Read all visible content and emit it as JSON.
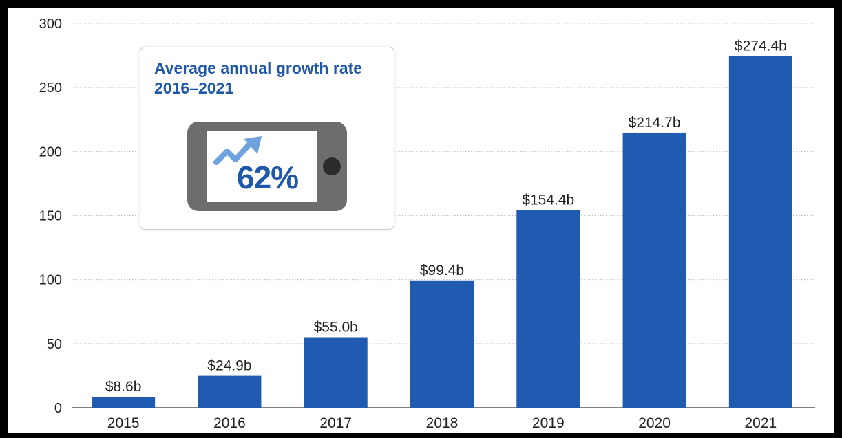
{
  "chart_data": {
    "type": "bar",
    "categories": [
      "2015",
      "2016",
      "2017",
      "2018",
      "2019",
      "2020",
      "2021"
    ],
    "values": [
      8.6,
      24.9,
      55.0,
      99.4,
      154.4,
      214.7,
      274.4
    ],
    "data_labels": [
      "$8.6b",
      "$24.9b",
      "$55.0b",
      "$99.4b",
      "$154.4b",
      "$214.7b",
      "$274.4b"
    ],
    "yticks": [
      0,
      50,
      100,
      150,
      200,
      250,
      300
    ],
    "ylim": [
      0,
      300
    ],
    "grid": true,
    "title": "",
    "xlabel": "",
    "ylabel": "",
    "bar_color": "#1f5bb0"
  },
  "callout": {
    "title": "Average annual growth rate 2016–2021",
    "value": "62%",
    "icon": "trend-up-arrow-icon",
    "accent_color": "#1f58a8",
    "icon_color": "#6fa2df"
  }
}
